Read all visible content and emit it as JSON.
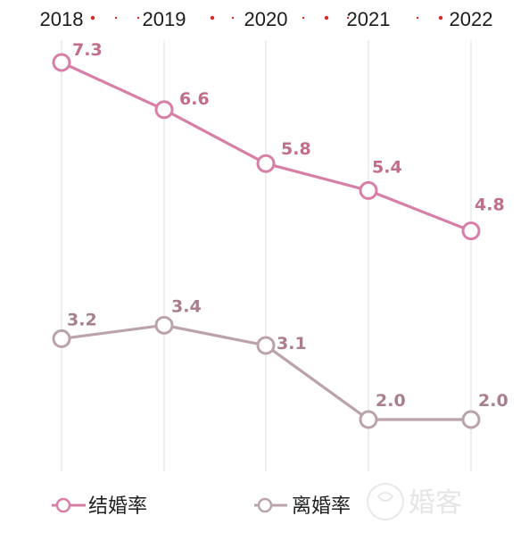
{
  "chart_data": {
    "type": "line",
    "categories": [
      "2018",
      "2019",
      "2020",
      "2021",
      "2022"
    ],
    "series": [
      {
        "name": "结婚率",
        "values": [
          7.3,
          6.6,
          5.8,
          5.4,
          4.8
        ],
        "color": "#d77fa6",
        "label_color": "#c26e89"
      },
      {
        "name": "离婚率",
        "values": [
          3.2,
          3.4,
          3.1,
          2.0,
          2.0
        ],
        "color": "#bba3aa",
        "label_color": "#a87f8c"
      }
    ],
    "ylim": [
      1.0,
      7.7
    ],
    "grid": "vertical",
    "legend": "bottom"
  }
}
